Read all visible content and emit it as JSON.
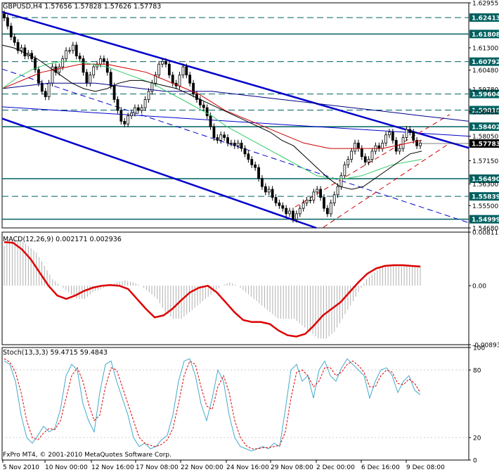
{
  "colors": {
    "background": "#ffffff",
    "hline": "#006060",
    "channel": "#0000cc",
    "candle": "#000000",
    "ma_black": "#000000",
    "ma_red": "#cc0000",
    "ma_green": "#33cc66",
    "ma_blue": "#000088",
    "macd_hist": "#b0b0b0",
    "macd_signal": "#dd0000",
    "stoch_main": "#44aacc",
    "stoch_signal": "#dd0000",
    "price_badge": "#000000"
  },
  "chart_data": [
    {
      "type": "candlestick",
      "title": "GBPUSD,H4  1.57656 1.57828 1.57626 1.57783",
      "ylim": [
        1.5468,
        1.62955
      ],
      "y_ticks": [
        "1.62955",
        "1.61300",
        "1.60480",
        "1.59780",
        "1.58950",
        "1.58050",
        "1.57150",
        "1.56300",
        "1.55500",
        "1.54680"
      ],
      "horizontal_levels": [
        {
          "label": "1.62413",
          "value": 1.62413,
          "style": "dashed"
        },
        {
          "label": "1.61808",
          "value": 1.61808,
          "style": "solid"
        },
        {
          "label": "1.60792",
          "value": 1.60792,
          "style": "dashed"
        },
        {
          "label": "1.59604",
          "value": 1.59604,
          "style": "dashed"
        },
        {
          "label": "1.59010",
          "value": 1.5901,
          "style": "dashed"
        },
        {
          "label": "1.58402",
          "value": 1.58402,
          "style": "solid"
        },
        {
          "label": "1.56490",
          "value": 1.5649,
          "style": "solid"
        },
        {
          "label": "1.55839",
          "value": 1.55839,
          "style": "dashed"
        },
        {
          "label": "1.54999",
          "value": 1.54999,
          "style": "solid"
        }
      ],
      "current_price": "1.57783",
      "close_series": [
        1.624,
        1.621,
        1.617,
        1.615,
        1.612,
        1.613,
        1.61,
        1.611,
        1.609,
        1.605,
        1.6,
        1.597,
        1.595,
        1.6,
        1.606,
        1.604,
        1.606,
        1.609,
        1.612,
        1.612,
        1.614,
        1.61,
        1.609,
        1.604,
        1.6,
        1.603,
        1.606,
        1.607,
        1.609,
        1.608,
        1.604,
        1.599,
        1.594,
        1.59,
        1.586,
        1.585,
        1.588,
        1.589,
        1.591,
        1.59,
        1.591,
        1.594,
        1.597,
        1.6,
        1.603,
        1.607,
        1.608,
        1.607,
        1.603,
        1.6,
        1.599,
        1.603,
        1.606,
        1.603,
        1.6,
        1.596,
        1.594,
        1.592,
        1.591,
        1.588,
        1.584,
        1.58,
        1.579,
        1.581,
        1.58,
        1.578,
        1.578,
        1.577,
        1.578,
        1.576,
        1.574,
        1.572,
        1.57,
        1.569,
        1.565,
        1.562,
        1.56,
        1.561,
        1.558,
        1.556,
        1.555,
        1.554,
        1.552,
        1.553,
        1.55,
        1.552,
        1.554,
        1.556,
        1.557,
        1.557,
        1.56,
        1.561,
        1.558,
        1.554,
        1.552,
        1.556,
        1.559,
        1.562,
        1.566,
        1.57,
        1.572,
        1.575,
        1.578,
        1.576,
        1.573,
        1.571,
        1.572,
        1.575,
        1.577,
        1.576,
        1.578,
        1.581,
        1.582,
        1.579,
        1.575,
        1.576,
        1.58,
        1.583,
        1.582,
        1.579,
        1.577,
        1.578
      ],
      "ma_black": [
        1.614,
        1.613,
        1.611,
        1.609,
        1.606,
        1.603,
        1.6,
        1.598,
        1.597,
        1.598,
        1.6,
        1.601,
        1.601,
        1.6,
        1.599,
        1.598,
        1.596,
        1.594,
        1.592,
        1.59,
        1.588,
        1.586,
        1.584,
        1.582,
        1.579,
        1.577,
        1.573,
        1.569,
        1.565,
        1.562,
        1.561,
        1.562,
        1.565,
        1.568,
        1.571,
        1.574,
        1.575
      ],
      "ma_red": [
        1.598,
        1.6,
        1.602,
        1.604,
        1.605,
        1.606,
        1.607,
        1.607,
        1.607,
        1.606,
        1.605,
        1.604,
        1.602,
        1.6,
        1.598,
        1.596,
        1.593,
        1.59,
        1.588,
        1.586,
        1.584,
        1.582,
        1.58,
        1.578,
        1.577,
        1.576,
        1.576,
        1.576,
        1.576,
        1.576,
        1.577,
        1.578,
        1.579
      ],
      "ma_green": [
        1.598,
        1.602,
        1.605,
        1.607,
        1.608,
        1.608,
        1.607,
        1.606,
        1.604,
        1.602,
        1.6,
        1.597,
        1.594,
        1.591,
        1.588,
        1.584,
        1.581,
        1.578,
        1.575,
        1.572,
        1.569,
        1.566,
        1.565,
        1.565,
        1.566,
        1.568,
        1.57,
        1.571,
        1.572
      ],
      "ma_blue": [
        1.598,
        1.599,
        1.6,
        1.6,
        1.6,
        1.599,
        1.598,
        1.597,
        1.597,
        1.597,
        1.596,
        1.595,
        1.594,
        1.593,
        1.592,
        1.591,
        1.59,
        1.589,
        1.588,
        1.587,
        1.586
      ]
    },
    {
      "type": "histogram+line",
      "title": "MACD(12,26,9) 0.002171 0.002936",
      "ylim": [
        -0.00893,
        0.00811
      ],
      "y_ticks": [
        "0.00811",
        "0.00",
        "-0.00893"
      ],
      "histogram": [
        0.006,
        0.007,
        0.007,
        0.006,
        0.005,
        0.003,
        0.001,
        0.0,
        -0.001,
        -0.002,
        -0.002,
        -0.001,
        -0.0005,
        0.0,
        0.0005,
        0.0008,
        0.0005,
        0.0,
        -0.001,
        -0.002,
        -0.004,
        -0.005,
        -0.005,
        -0.004,
        -0.003,
        -0.002,
        -0.001,
        0.0,
        0.0005,
        0.0,
        -0.001,
        -0.002,
        -0.003,
        -0.004,
        -0.005,
        -0.005,
        -0.005,
        -0.006,
        -0.007,
        -0.008,
        -0.008,
        -0.007,
        -0.005,
        -0.003,
        -0.001,
        0.001,
        0.002,
        0.003,
        0.003,
        0.003,
        0.003,
        0.003
      ],
      "signal": [
        0.0066,
        0.0065,
        0.0055,
        0.004,
        0.002,
        0.0,
        -0.0015,
        -0.002,
        -0.0015,
        -0.0008,
        -0.0003,
        0.0,
        0.0001,
        0.0,
        -0.0005,
        -0.002,
        -0.0035,
        -0.0048,
        -0.0045,
        -0.0035,
        -0.0022,
        -0.001,
        -0.0003,
        0.0,
        -0.001,
        -0.0025,
        -0.004,
        -0.0052,
        -0.0055,
        -0.0055,
        -0.0058,
        -0.0068,
        -0.0075,
        -0.0077,
        -0.0073,
        -0.006,
        -0.0045,
        -0.0035,
        -0.0025,
        -0.001,
        0.0005,
        0.0018,
        0.0026,
        0.003,
        0.0031,
        0.0031,
        0.003,
        0.0029
      ]
    },
    {
      "type": "line",
      "title": "Stoch(13,3,3) 59.4715 59.4843",
      "ylim": [
        0,
        100
      ],
      "y_ticks": [
        "100",
        "80",
        "20",
        "0"
      ],
      "main": [
        88,
        85,
        70,
        40,
        20,
        15,
        22,
        30,
        25,
        28,
        45,
        75,
        85,
        80,
        50,
        35,
        25,
        60,
        85,
        88,
        70,
        55,
        40,
        20,
        12,
        15,
        10,
        12,
        18,
        22,
        40,
        70,
        88,
        90,
        75,
        50,
        35,
        55,
        80,
        70,
        40,
        20,
        12,
        10,
        8,
        10,
        12,
        10,
        15,
        12,
        45,
        80,
        85,
        70,
        75,
        55,
        80,
        88,
        75,
        70,
        82,
        90,
        85,
        80,
        75,
        55,
        70,
        80,
        82,
        75,
        60,
        70,
        75,
        62,
        58
      ],
      "signal": [
        90,
        87,
        78,
        60,
        35,
        20,
        18,
        24,
        28,
        27,
        35,
        55,
        75,
        82,
        70,
        50,
        35,
        40,
        65,
        82,
        80,
        65,
        50,
        35,
        20,
        15,
        13,
        12,
        14,
        18,
        28,
        50,
        75,
        88,
        85,
        65,
        48,
        45,
        65,
        75,
        60,
        35,
        20,
        13,
        10,
        10,
        11,
        11,
        12,
        13,
        25,
        55,
        78,
        80,
        75,
        65,
        70,
        82,
        82,
        75,
        78,
        85,
        88,
        84,
        78,
        65,
        65,
        75,
        80,
        78,
        68,
        67,
        72,
        68,
        60
      ]
    }
  ],
  "time_axis": [
    "5 Nov 2010",
    "10 Nov 00:00",
    "12 Nov 16:00",
    "17 Nov 08:00",
    "22 Nov 00:00",
    "24 Nov 16:00",
    "29 Nov 08:00",
    "2 Dec 00:00",
    "6 Dec 16:00",
    "9 Dec 08:00"
  ],
  "copyright": "FxPro MT4, © 2001-2010 MetaQuotes Software Corp."
}
